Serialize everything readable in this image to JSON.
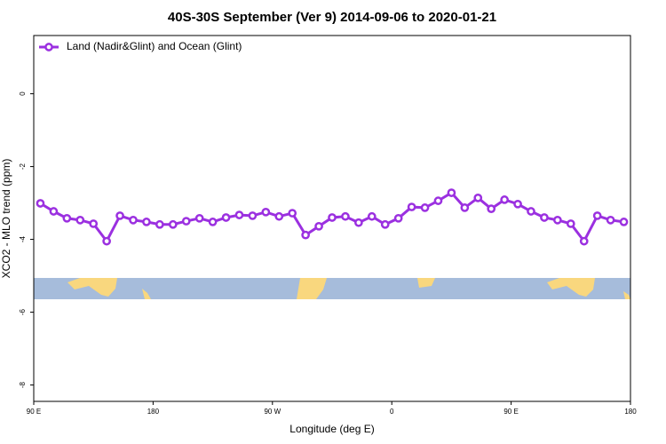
{
  "chart_data": {
    "type": "line",
    "title": "40S-30S September (Ver 9)   2014-09-06 to 2020-01-21",
    "x_label": "Longitude (deg E)",
    "y_label": "XCO2 - MLO trend (ppm)",
    "x": [
      95,
      105,
      115,
      125,
      135,
      145,
      155,
      165,
      175,
      185,
      195,
      205,
      215,
      225,
      235,
      245,
      255,
      265,
      275,
      285,
      295,
      305,
      315,
      325,
      335,
      345,
      355,
      365,
      375,
      385,
      395,
      405,
      415,
      425,
      435,
      445,
      455,
      465,
      475,
      485,
      495,
      505,
      515,
      525,
      535
    ],
    "series": [
      {
        "name": "Land (Nadir&Glint) and Ocean (Glint)",
        "color": "#9b30e0",
        "values": [
          -3.01,
          -3.23,
          -3.42,
          -3.47,
          -3.57,
          -4.05,
          -3.35,
          -3.47,
          -3.52,
          -3.59,
          -3.59,
          -3.5,
          -3.42,
          -3.52,
          -3.4,
          -3.33,
          -3.35,
          -3.25,
          -3.37,
          -3.28,
          -3.88,
          -3.64,
          -3.4,
          -3.37,
          -3.54,
          -3.37,
          -3.59,
          -3.42,
          -3.11,
          -3.13,
          -2.94,
          -2.72,
          -3.13,
          -2.86,
          -3.16,
          -2.91,
          -3.03,
          -3.23,
          -3.4,
          -3.47,
          -3.57,
          -4.05,
          -3.35,
          -3.47,
          -3.52
        ]
      }
    ],
    "xlim": [
      90,
      540
    ],
    "xticks": [
      {
        "value": 90,
        "label": "90 E"
      },
      180,
      {
        "value": 270,
        "label": "90 W"
      },
      {
        "value": 360,
        "label": "0"
      },
      {
        "value": 450,
        "label": "90 E"
      },
      {
        "value": 540,
        "label": "180"
      }
    ],
    "ylim": [
      -8.45,
      1.6
    ],
    "yticks": [
      0,
      -2,
      -4,
      -6,
      -8
    ],
    "legend": "top-left"
  }
}
